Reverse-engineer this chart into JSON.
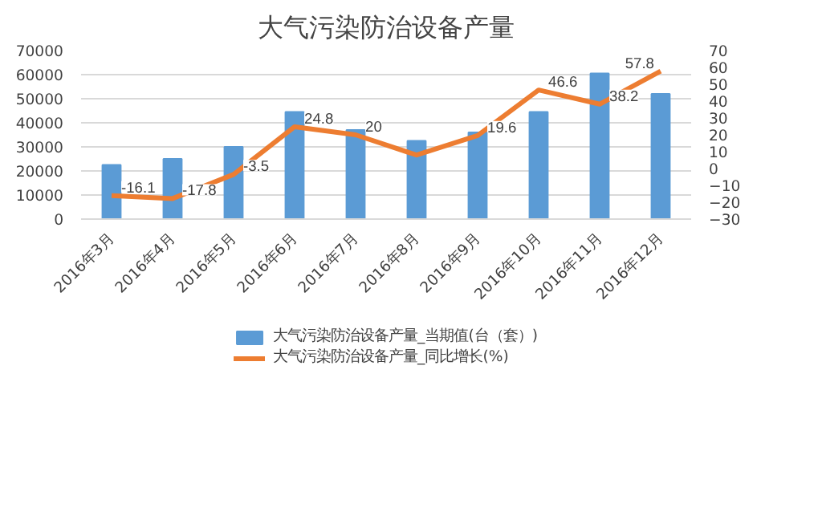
{
  "chart_data": {
    "type": "bar",
    "title": "大气污染防治设备产量",
    "categories": [
      "2016年3月",
      "2016年4月",
      "2016年5月",
      "2016年6月",
      "2016年7月",
      "2016年8月",
      "2016年9月",
      "2016年10月",
      "2016年11月",
      "2016年12月"
    ],
    "series": [
      {
        "name": "大气污染防治设备产量_当期值(台（套）)",
        "color": "#5b9bd5",
        "values": [
          22500,
          25000,
          30000,
          44500,
          37000,
          32500,
          36000,
          44500,
          60500,
          52000
        ]
      },
      {
        "name": "大气污染防治设备产量_同比增长(%)",
        "type": "line",
        "axis": "y2",
        "color": "#ed7d31",
        "values": [
          -16.1,
          -17.8,
          -3.5,
          24.8,
          20,
          8,
          19.6,
          46.6,
          38.2,
          57.8
        ],
        "value_labels": [
          "-16.1",
          "-17.8",
          "-3.5",
          "24.8",
          "20",
          null,
          "19.6",
          "46.6",
          "38.2",
          "57.8"
        ]
      }
    ],
    "ylim": [
      0,
      70000
    ],
    "yticks": [
      0,
      10000,
      20000,
      30000,
      40000,
      50000,
      60000,
      70000
    ],
    "y2lim": [
      -30,
      70
    ],
    "y2ticks": [
      -30,
      -20,
      -10,
      0,
      10,
      20,
      30,
      40,
      50,
      60,
      70
    ],
    "grid": "y",
    "legend": "bottom",
    "marker": "none",
    "line_style": "solid"
  }
}
